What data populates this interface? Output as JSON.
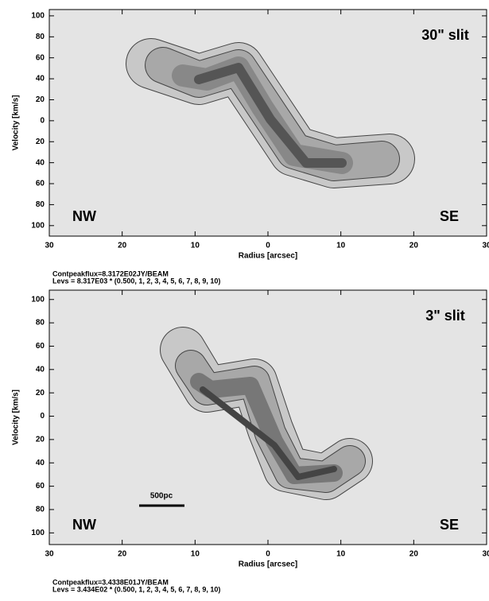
{
  "chart_data": [
    {
      "type": "contour",
      "slit_label": "30\" slit",
      "left_label": "NW",
      "right_label": "SE",
      "x_label": "Radius [arcsec]",
      "y_label": "Velocity [km/s]",
      "xlim": [
        30,
        -30
      ],
      "ylim": [
        -110,
        106
      ],
      "xticks": [
        30,
        20,
        10,
        0,
        {
          "value": -10,
          "label": "10"
        },
        {
          "value": -20,
          "label": "20"
        },
        {
          "value": -30,
          "label": "30"
        }
      ],
      "yticks": [
        100,
        80,
        60,
        40,
        20,
        0,
        {
          "value": -20,
          "label": "20"
        },
        {
          "value": -40,
          "label": "40"
        },
        {
          "value": -60,
          "label": "60"
        },
        {
          "value": -80,
          "label": "80"
        },
        {
          "value": -100,
          "label": "100"
        }
      ],
      "caption": [
        "Contpeakflux=8.3172E02JY/BEAM",
        "Levs = 8.317E03 * (0.500, 1, 2, 3, 4, 5, 6, 7, 8, 9, 10)"
      ]
    },
    {
      "type": "contour",
      "slit_label": "3\" slit",
      "left_label": "NW",
      "right_label": "SE",
      "x_label": "Radius [arcsec]",
      "y_label": "Velocity [km/s]",
      "scale_bar": "500pc",
      "xlim": [
        30,
        -30
      ],
      "ylim": [
        -110,
        108
      ],
      "xticks": [
        30,
        20,
        10,
        0,
        {
          "value": -10,
          "label": "10"
        },
        {
          "value": -20,
          "label": "20"
        },
        {
          "value": -30,
          "label": "30"
        }
      ],
      "yticks": [
        100,
        80,
        60,
        40,
        20,
        0,
        {
          "value": -20,
          "label": "20"
        },
        {
          "value": -40,
          "label": "40"
        },
        {
          "value": -60,
          "label": "60"
        },
        {
          "value": -80,
          "label": "80"
        },
        {
          "value": -100,
          "label": "100"
        }
      ],
      "caption": [
        "Contpeakflux=3.4338E01JY/BEAM",
        "Levs = 3.434E02 * (0.500, 1, 2, 3, 4, 5, 6, 7, 8, 9, 10)"
      ]
    }
  ]
}
